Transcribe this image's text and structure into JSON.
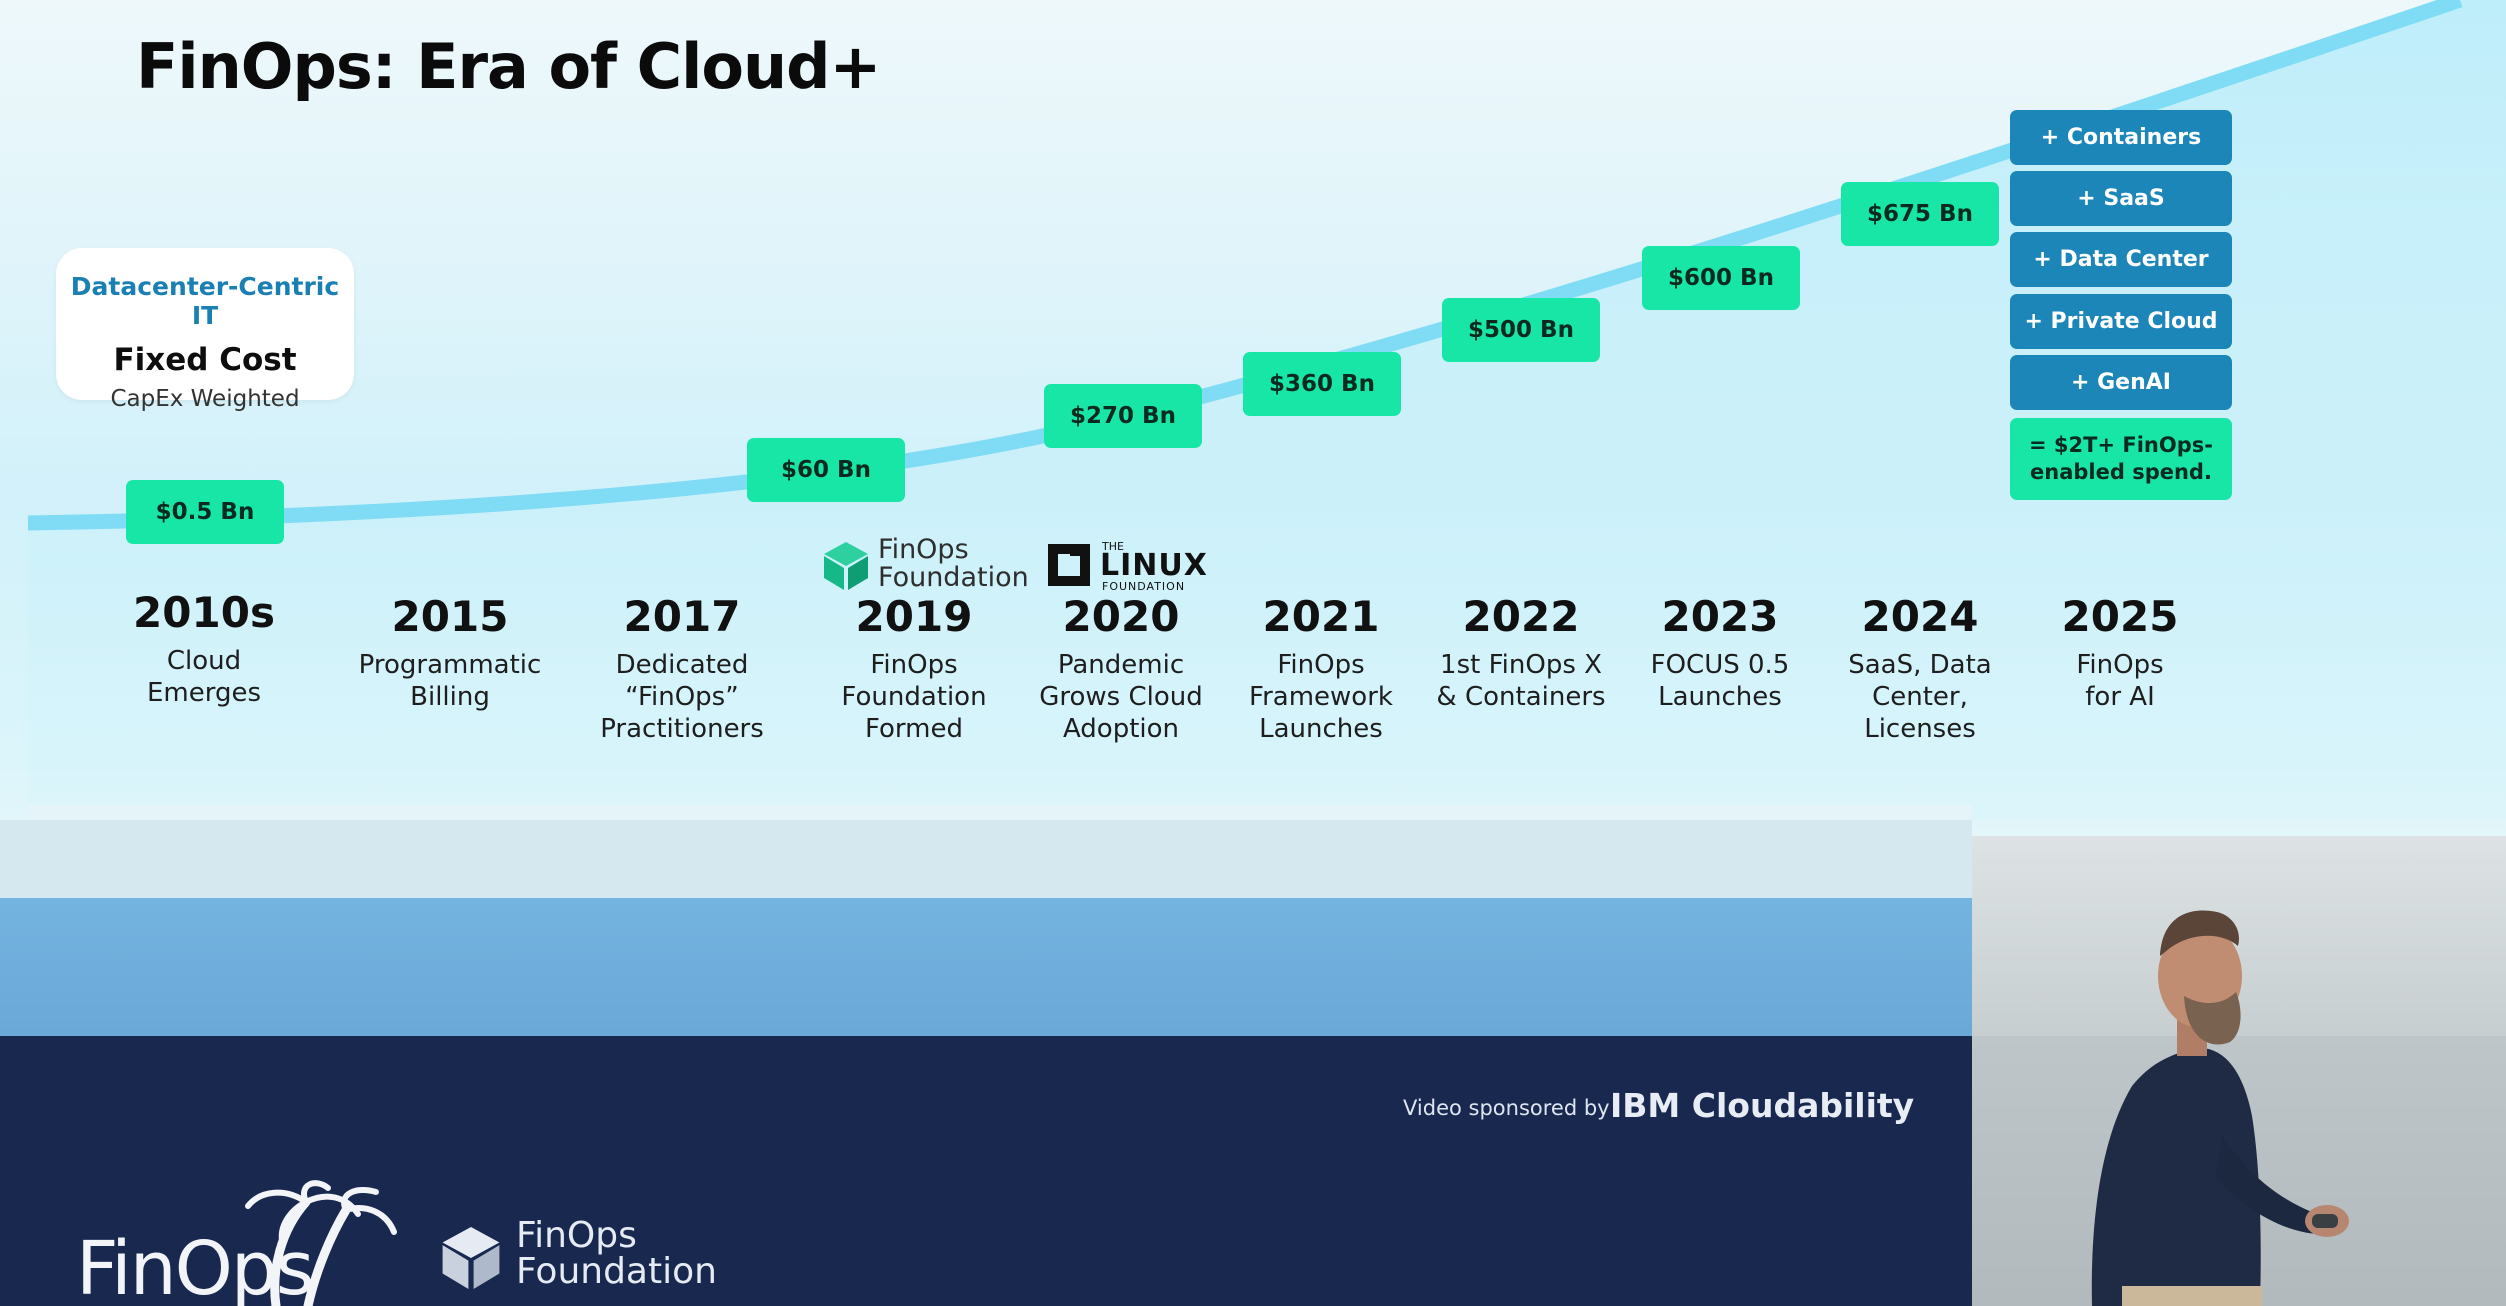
{
  "slide": {
    "title": "FinOps: Era of Cloud+"
  },
  "datacenter_card": {
    "label": "Datacenter-Centric IT",
    "heading": "Fixed Cost",
    "subheading": "CapEx Weighted"
  },
  "spend_badges": [
    {
      "value": "$0.5 Bn"
    },
    {
      "value": "$60 Bn"
    },
    {
      "value": "$270 Bn"
    },
    {
      "value": "$360 Bn"
    },
    {
      "value": "$500 Bn"
    },
    {
      "value": "$600 Bn"
    },
    {
      "value": "$675 Bn"
    }
  ],
  "addons": [
    {
      "label": "+ Containers"
    },
    {
      "label": "+ SaaS"
    },
    {
      "label": "+ Data Center"
    },
    {
      "label": "+ Private Cloud"
    },
    {
      "label": "+ GenAI"
    }
  ],
  "total": {
    "label": "= $2T+ FinOps-enabled spend."
  },
  "milestones": [
    {
      "year": "2010s",
      "description": "Cloud\nEmerges"
    },
    {
      "year": "2015",
      "description": "Programmatic\nBilling"
    },
    {
      "year": "2017",
      "description": "Dedicated\n“FinOps”\nPractitioners"
    },
    {
      "year": "2019",
      "description": "FinOps\nFoundation\nFormed"
    },
    {
      "year": "2020",
      "description": "Pandemic\nGrows Cloud\nAdoption"
    },
    {
      "year": "2021",
      "description": "FinOps\nFramework\nLaunches"
    },
    {
      "year": "2022",
      "description": "1st FinOps X\n& Containers"
    },
    {
      "year": "2023",
      "description": "FOCUS 0.5\nLaunches"
    },
    {
      "year": "2024",
      "description": "SaaS, Data\nCenter,\nLicenses"
    },
    {
      "year": "2025",
      "description": "FinOps\nfor AI"
    }
  ],
  "inline_logos": {
    "finops_foundation": "FinOps\nFoundation",
    "linux_the": "THE",
    "linux_name": "LINUX",
    "linux_foundation": "FOUNDATION"
  },
  "footer": {
    "sponsor_label": "Video sponsored by",
    "sponsor_name": "IBM Cloudability",
    "event_logo": "FinOps",
    "foundation_logo": "FinOps\nFoundation"
  },
  "colors": {
    "badge_green": "#17e6a6",
    "addon_blue": "#1c86b8",
    "navy": "#18284f",
    "curve": "#7fdcf4"
  }
}
